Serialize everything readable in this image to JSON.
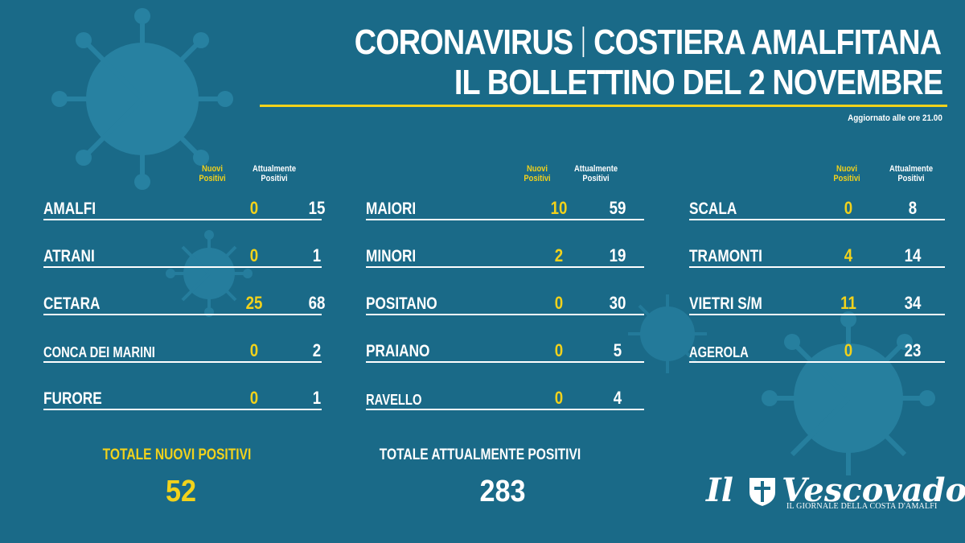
{
  "header": {
    "title_left": "CORONAVIRUS",
    "title_right": "COSTIERA AMALFITANA",
    "subtitle": "IL BOLLETTINO DEL 2 NOVEMBRE",
    "updated": "Aggiornato alle ore 21.00"
  },
  "column_heads": {
    "nuovi_line1": "Nuovi",
    "nuovi_line2": "Positivi",
    "attual_line1": "Attualmente",
    "attual_line2": "Positivi"
  },
  "columns": [
    {
      "rows": [
        {
          "town": "AMALFI",
          "nuovi": "0",
          "attual": "15"
        },
        {
          "town": "ATRANI",
          "nuovi": "0",
          "attual": "1"
        },
        {
          "town": "CETARA",
          "nuovi": "25",
          "attual": "68"
        },
        {
          "town": "CONCA DEI MARINI",
          "nuovi": "0",
          "attual": "2"
        },
        {
          "town": "FURORE",
          "nuovi": "0",
          "attual": "1"
        }
      ]
    },
    {
      "rows": [
        {
          "town": "MAIORI",
          "nuovi": "10",
          "attual": "59"
        },
        {
          "town": "MINORI",
          "nuovi": "2",
          "attual": "19"
        },
        {
          "town": "POSITANO",
          "nuovi": "0",
          "attual": "30"
        },
        {
          "town": "PRAIANO",
          "nuovi": "0",
          "attual": "5"
        },
        {
          "town": "RAVELLO",
          "nuovi": "0",
          "attual": "4"
        }
      ]
    },
    {
      "rows": [
        {
          "town": "SCALA",
          "nuovi": "0",
          "attual": "8"
        },
        {
          "town": "TRAMONTI",
          "nuovi": "4",
          "attual": "14"
        },
        {
          "town": "VIETRI S/M",
          "nuovi": "11",
          "attual": "34"
        },
        {
          "town": "AGEROLA",
          "nuovi": "0",
          "attual": "23"
        }
      ]
    }
  ],
  "totals": {
    "nuovi_label": "TOTALE NUOVI POSITIVI",
    "nuovi_value": "52",
    "attual_label": "TOTALE ATTUALMENTE POSITIVI",
    "attual_value": "283"
  },
  "logo": {
    "word_left": "Il",
    "word_right": "Vescovado",
    "tagline": "IL GIORNALE DELLA COSTA D'AMALFI"
  },
  "colors": {
    "background": "#1a6a88",
    "accent": "#f2d21b",
    "virus": "#2a86a6"
  }
}
